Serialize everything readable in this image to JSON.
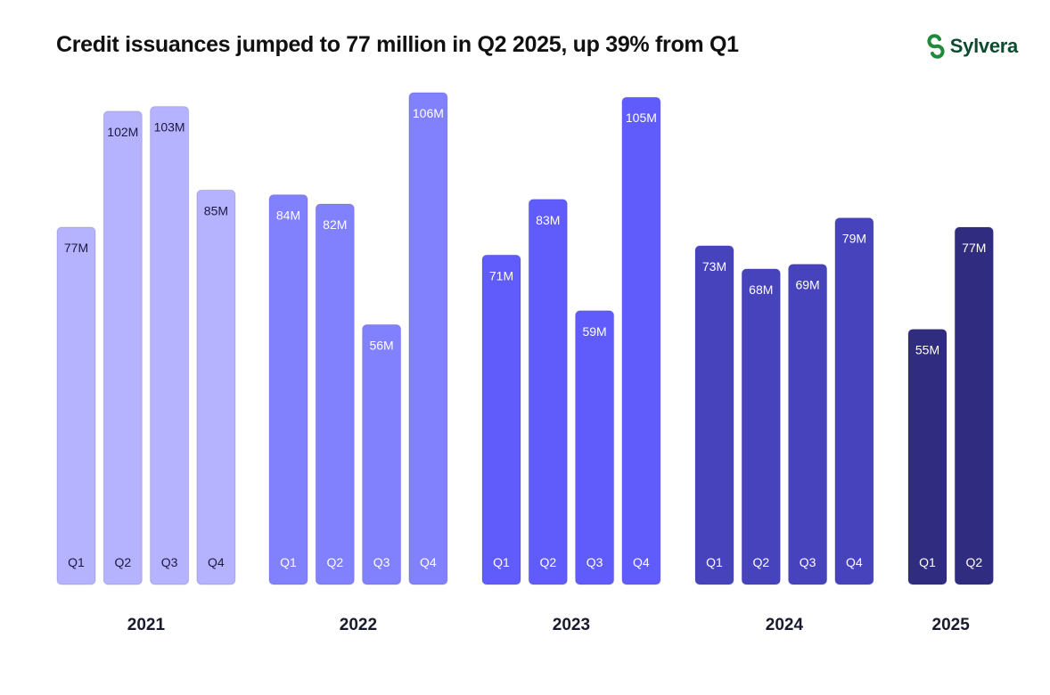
{
  "brand": {
    "name": "Sylvera",
    "logo_icon": "sylvera-s-logo-icon",
    "logo_color": "#1f8a3c"
  },
  "chart_data": {
    "type": "bar",
    "title": "Credit issuances jumped to 77 million in Q2 2025, up 39% from Q1",
    "xlabel": "",
    "ylabel": "",
    "ylim": [
      0,
      106
    ],
    "grid": false,
    "groups": [
      {
        "year": "2021",
        "color": "#b5b3fd",
        "label_color": "#1a1a40",
        "bars": [
          {
            "quarter": "Q1",
            "value": 77,
            "label": "77M"
          },
          {
            "quarter": "Q2",
            "value": 102,
            "label": "102M"
          },
          {
            "quarter": "Q3",
            "value": 103,
            "label": "103M"
          },
          {
            "quarter": "Q4",
            "value": 85,
            "label": "85M"
          }
        ]
      },
      {
        "year": "2022",
        "color": "#8180fd",
        "label_color": "#ffffff",
        "bars": [
          {
            "quarter": "Q1",
            "value": 84,
            "label": "84M"
          },
          {
            "quarter": "Q2",
            "value": 82,
            "label": "82M"
          },
          {
            "quarter": "Q3",
            "value": 56,
            "label": "56M"
          },
          {
            "quarter": "Q4",
            "value": 106,
            "label": "106M"
          }
        ]
      },
      {
        "year": "2023",
        "color": "#5f5cfb",
        "label_color": "#ffffff",
        "bars": [
          {
            "quarter": "Q1",
            "value": 71,
            "label": "71M"
          },
          {
            "quarter": "Q2",
            "value": 83,
            "label": "83M"
          },
          {
            "quarter": "Q3",
            "value": 59,
            "label": "59M"
          },
          {
            "quarter": "Q4",
            "value": 105,
            "label": "105M"
          }
        ]
      },
      {
        "year": "2024",
        "color": "#4643bd",
        "label_color": "#ffffff",
        "bars": [
          {
            "quarter": "Q1",
            "value": 73,
            "label": "73M"
          },
          {
            "quarter": "Q2",
            "value": 68,
            "label": "68M"
          },
          {
            "quarter": "Q3",
            "value": 69,
            "label": "69M"
          },
          {
            "quarter": "Q4",
            "value": 79,
            "label": "79M"
          }
        ]
      },
      {
        "year": "2025",
        "color": "#302c80",
        "label_color": "#ffffff",
        "bars": [
          {
            "quarter": "Q1",
            "value": 55,
            "label": "55M"
          },
          {
            "quarter": "Q2",
            "value": 77,
            "label": "77M"
          }
        ]
      }
    ]
  }
}
